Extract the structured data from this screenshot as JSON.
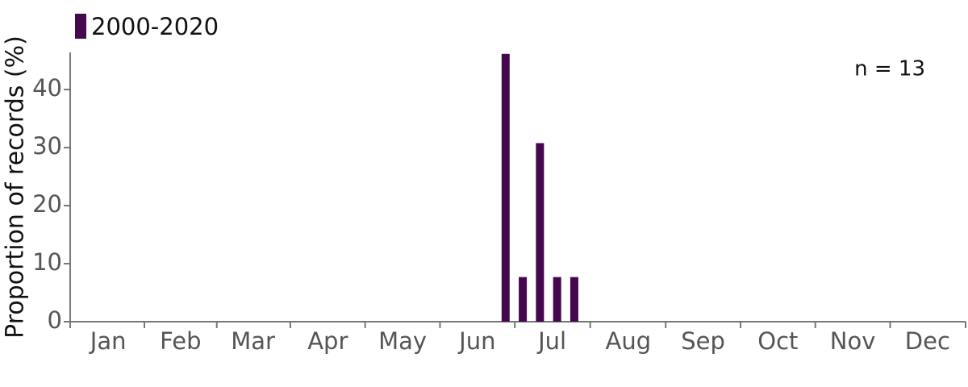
{
  "chart_data": {
    "type": "bar",
    "y_label": "Proportion of records (%)",
    "annotation": "n = 13",
    "series": [
      {
        "name": "2000-2020",
        "color": "#45084f",
        "x": [
          177.5,
          184.5,
          191.5,
          198.5,
          205.5
        ],
        "values": [
          46.15,
          7.69,
          30.77,
          7.69,
          7.69
        ]
      }
    ],
    "xlim": [
      0,
      365
    ],
    "xticks": [
      {
        "value": 15.5,
        "label": "Jan"
      },
      {
        "value": 45,
        "label": "Feb"
      },
      {
        "value": 74.5,
        "label": "Mar"
      },
      {
        "value": 105,
        "label": "Apr"
      },
      {
        "value": 135.5,
        "label": "May"
      },
      {
        "value": 166,
        "label": "Jun"
      },
      {
        "value": 196.5,
        "label": "Jul"
      },
      {
        "value": 227.5,
        "label": "Aug"
      },
      {
        "value": 258,
        "label": "Sep"
      },
      {
        "value": 288.5,
        "label": "Oct"
      },
      {
        "value": 319,
        "label": "Nov"
      },
      {
        "value": 349.5,
        "label": "Dec"
      }
    ],
    "ylim": [
      0,
      46.4
    ],
    "yticks": [
      0,
      10,
      20,
      30,
      40
    ],
    "grid": false,
    "legend": "top-left"
  }
}
